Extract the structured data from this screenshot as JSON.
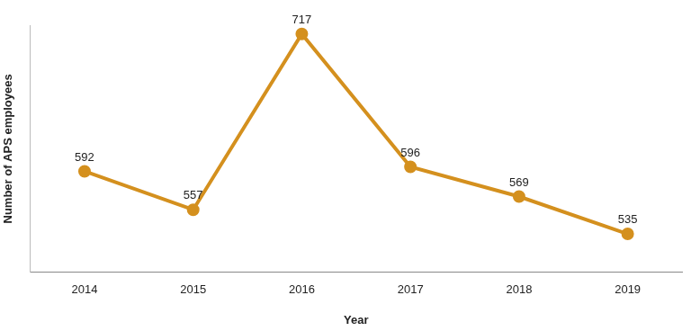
{
  "chart_data": {
    "type": "line",
    "x_label": "Year",
    "y_label": "Number of APS employees",
    "categories": [
      "2014",
      "2015",
      "2016",
      "2017",
      "2018",
      "2019"
    ],
    "values": [
      592,
      557,
      717,
      596,
      569,
      535
    ],
    "color": "#d4901e",
    "ylim": [
      500,
      725
    ],
    "grid": false,
    "data_labels": true,
    "tick_labels": "x",
    "marker": "circle",
    "line_style": "solid"
  }
}
